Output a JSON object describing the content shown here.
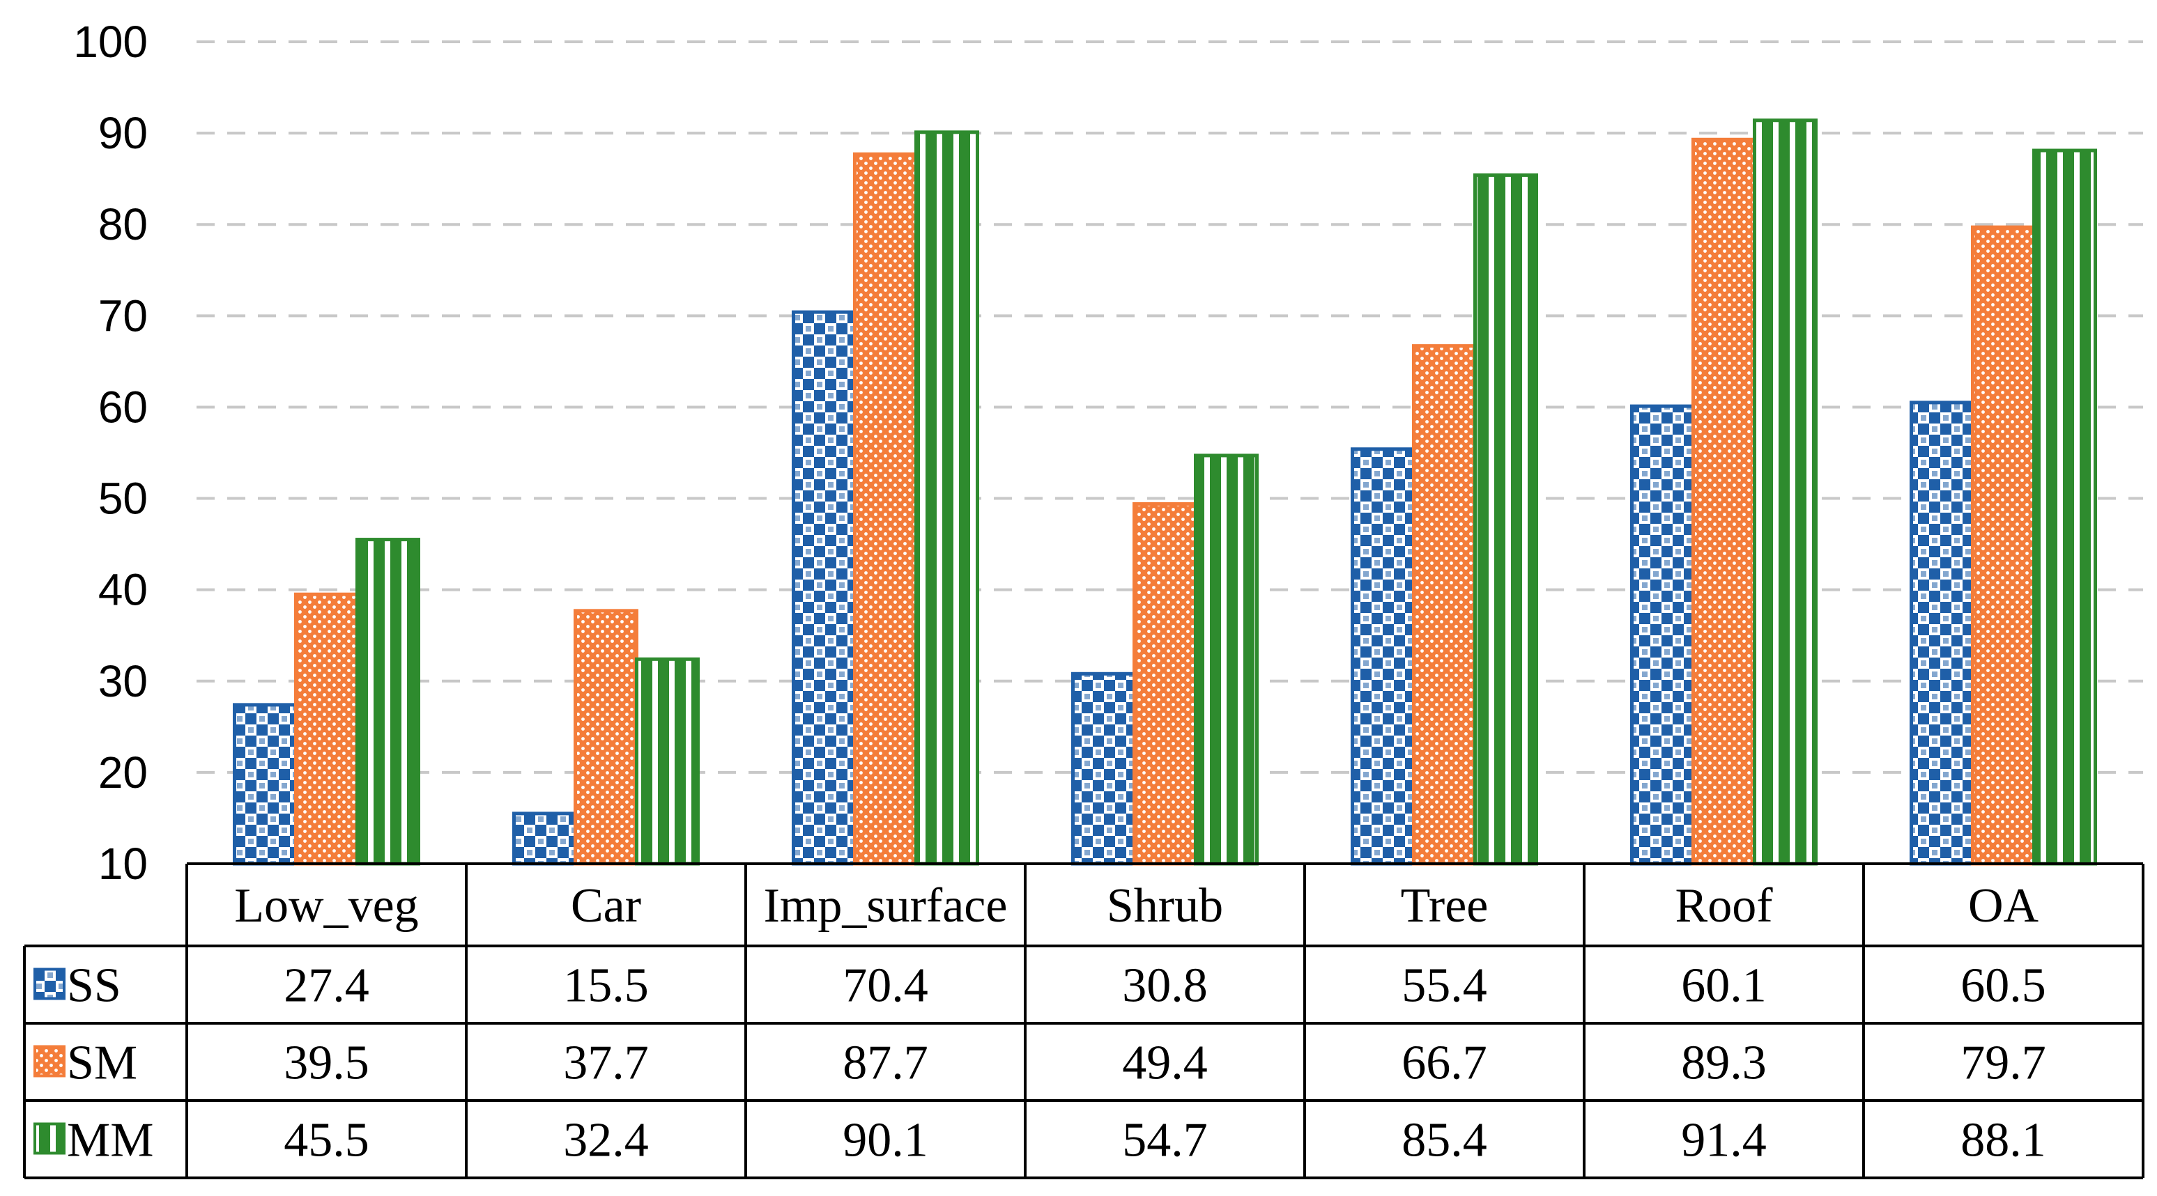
{
  "chart_data": {
    "type": "bar",
    "title": "",
    "xlabel": "",
    "ylabel": "",
    "ylim": [
      10,
      100
    ],
    "yticks": [
      10,
      20,
      30,
      40,
      50,
      60,
      70,
      80,
      90,
      100
    ],
    "grid": "dashed-horizontal",
    "legend": "embedded-in-data-table",
    "categories": [
      "Low_veg",
      "Car",
      "Imp_surface",
      "Shrub",
      "Tree",
      "Roof",
      "OA"
    ],
    "series": [
      {
        "name": "SS",
        "values": [
          27.4,
          15.5,
          70.4,
          30.8,
          55.4,
          60.1,
          60.5
        ],
        "color": "#1f5fa8",
        "pattern": "checker"
      },
      {
        "name": "SM",
        "values": [
          39.5,
          37.7,
          87.7,
          49.4,
          66.7,
          89.3,
          79.7
        ],
        "color": "#f47d3a",
        "pattern": "dots"
      },
      {
        "name": "MM",
        "values": [
          45.5,
          32.4,
          90.1,
          54.7,
          85.4,
          91.4,
          88.1
        ],
        "color": "#2e8b2e",
        "pattern": "vertical-stripes"
      }
    ]
  }
}
